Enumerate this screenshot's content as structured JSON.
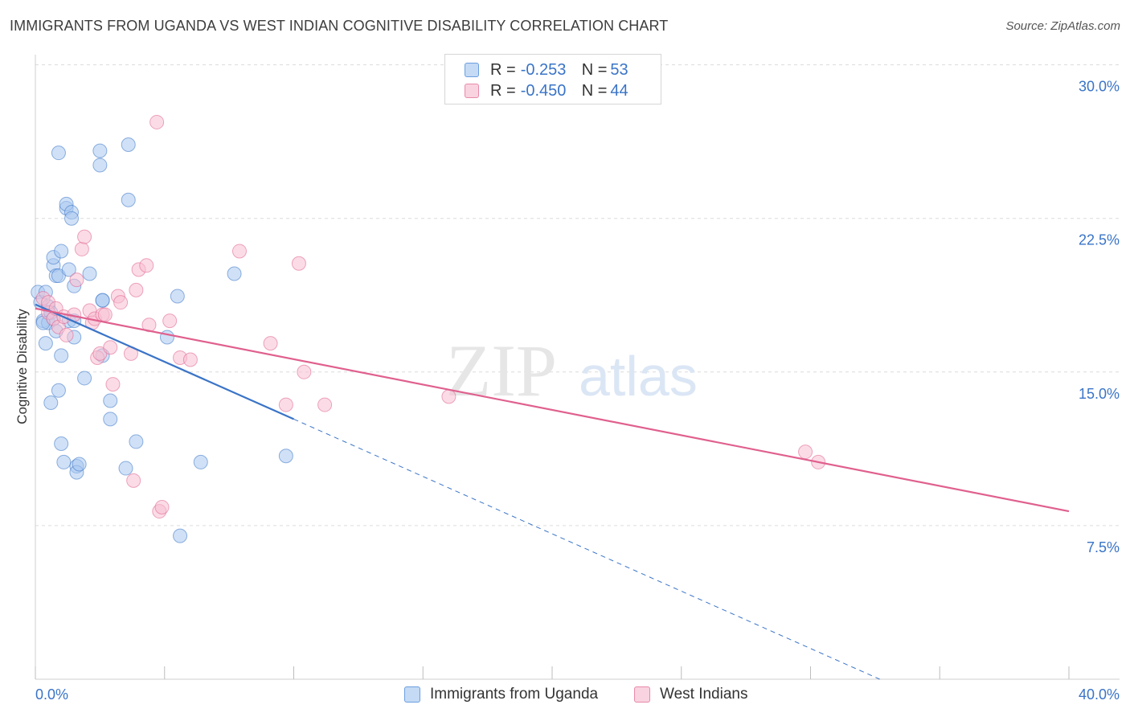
{
  "header": {
    "title": "IMMIGRANTS FROM UGANDA VS WEST INDIAN COGNITIVE DISABILITY CORRELATION CHART",
    "source": "Source: ZipAtlas.com"
  },
  "watermark": {
    "zip": "ZIP",
    "atlas": "atlas"
  },
  "legend": {
    "rows": [
      {
        "r_label": "R =",
        "r_value": "-0.253",
        "n_label": "N =",
        "n_value": "53",
        "color": "#a9c8f0",
        "border": "#6a9fe0"
      },
      {
        "r_label": "R =",
        "r_value": "-0.450",
        "n_label": "N =",
        "n_value": "44",
        "color": "#f7c0d2",
        "border": "#e88aaa"
      }
    ]
  },
  "bottom_legend": {
    "series_1": "Immigrants from Uganda",
    "series_2": "West Indians"
  },
  "chart_data": {
    "type": "scatter",
    "title": "IMMIGRANTS FROM UGANDA VS WEST INDIAN COGNITIVE DISABILITY CORRELATION CHART",
    "xlabel": "",
    "ylabel": "Cognitive Disability",
    "xlim": [
      0,
      40
    ],
    "ylim": [
      0,
      31
    ],
    "x_tick_labels": [
      "0.0%",
      "40.0%"
    ],
    "y_ticks": [
      7.5,
      15.0,
      22.5,
      30.0
    ],
    "y_tick_labels": [
      "7.5%",
      "15.0%",
      "22.5%",
      "30.0%"
    ],
    "colors": {
      "uganda": "#3a74c7",
      "west_indians": "#e0608e",
      "tick_text": "#3a74c7"
    },
    "series": [
      {
        "name": "Immigrants from Uganda",
        "color": "#3a74c7",
        "fill": "#a9c8f0",
        "points": [
          [
            0.1,
            18.9
          ],
          [
            0.2,
            18.4
          ],
          [
            0.3,
            17.5
          ],
          [
            0.4,
            16.4
          ],
          [
            0.4,
            18.9
          ],
          [
            0.5,
            17.4
          ],
          [
            0.5,
            18.2
          ],
          [
            0.6,
            17.9
          ],
          [
            0.6,
            13.5
          ],
          [
            0.7,
            20.2
          ],
          [
            0.7,
            17.6
          ],
          [
            0.7,
            20.6
          ],
          [
            0.8,
            17.0
          ],
          [
            0.8,
            19.7
          ],
          [
            0.9,
            25.7
          ],
          [
            0.9,
            14.1
          ],
          [
            0.9,
            19.7
          ],
          [
            1.0,
            20.9
          ],
          [
            1.0,
            15.8
          ],
          [
            1.0,
            11.5
          ],
          [
            1.1,
            10.6
          ],
          [
            1.2,
            23.0
          ],
          [
            1.2,
            23.2
          ],
          [
            1.3,
            17.5
          ],
          [
            1.3,
            20.0
          ],
          [
            1.4,
            22.8
          ],
          [
            1.4,
            22.5
          ],
          [
            1.5,
            19.2
          ],
          [
            1.5,
            17.5
          ],
          [
            1.5,
            16.7
          ],
          [
            1.6,
            10.4
          ],
          [
            1.6,
            10.1
          ],
          [
            1.7,
            10.5
          ],
          [
            1.9,
            14.7
          ],
          [
            2.1,
            19.8
          ],
          [
            2.5,
            25.8
          ],
          [
            2.5,
            25.1
          ],
          [
            2.6,
            18.5
          ],
          [
            2.6,
            18.5
          ],
          [
            2.6,
            15.8
          ],
          [
            2.9,
            13.6
          ],
          [
            2.9,
            12.7
          ],
          [
            3.5,
            10.3
          ],
          [
            3.6,
            23.4
          ],
          [
            3.6,
            26.1
          ],
          [
            3.9,
            11.6
          ],
          [
            5.1,
            16.7
          ],
          [
            5.5,
            18.7
          ],
          [
            5.6,
            7.0
          ],
          [
            6.4,
            10.6
          ],
          [
            7.7,
            19.8
          ],
          [
            9.7,
            10.9
          ],
          [
            0.3,
            17.4
          ]
        ]
      },
      {
        "name": "West Indians",
        "color": "#e0608e",
        "fill": "#f7c0d2",
        "points": [
          [
            0.3,
            18.6
          ],
          [
            0.5,
            17.9
          ],
          [
            0.5,
            18.4
          ],
          [
            0.7,
            17.6
          ],
          [
            0.8,
            18.1
          ],
          [
            0.9,
            17.2
          ],
          [
            1.1,
            17.7
          ],
          [
            1.2,
            16.8
          ],
          [
            1.5,
            17.8
          ],
          [
            1.6,
            19.5
          ],
          [
            1.8,
            21.0
          ],
          [
            1.9,
            21.6
          ],
          [
            2.1,
            18.0
          ],
          [
            2.2,
            17.4
          ],
          [
            2.3,
            17.6
          ],
          [
            2.4,
            15.7
          ],
          [
            2.5,
            15.9
          ],
          [
            2.6,
            17.8
          ],
          [
            2.7,
            17.8
          ],
          [
            2.9,
            16.2
          ],
          [
            3.0,
            14.4
          ],
          [
            3.2,
            18.7
          ],
          [
            3.3,
            18.4
          ],
          [
            3.7,
            15.9
          ],
          [
            3.8,
            9.7
          ],
          [
            3.9,
            19.0
          ],
          [
            4.0,
            20.0
          ],
          [
            4.3,
            20.2
          ],
          [
            4.4,
            17.3
          ],
          [
            4.7,
            27.2
          ],
          [
            4.8,
            8.2
          ],
          [
            4.9,
            8.4
          ],
          [
            5.2,
            17.5
          ],
          [
            5.6,
            15.7
          ],
          [
            6.0,
            15.6
          ],
          [
            7.9,
            20.9
          ],
          [
            9.1,
            16.4
          ],
          [
            9.7,
            13.4
          ],
          [
            10.2,
            20.3
          ],
          [
            10.4,
            15.0
          ],
          [
            11.2,
            13.4
          ],
          [
            16.0,
            13.8
          ],
          [
            29.8,
            11.1
          ],
          [
            30.3,
            10.6
          ]
        ]
      }
    ],
    "trend_lines": [
      {
        "series": "Immigrants from Uganda",
        "solid": [
          [
            0.0,
            18.3
          ],
          [
            10.0,
            12.7
          ]
        ],
        "dashed": [
          [
            10.0,
            12.7
          ],
          [
            40.0,
            -4.1
          ]
        ]
      },
      {
        "series": "West Indians",
        "solid": [
          [
            0.0,
            18.1
          ],
          [
            40.0,
            8.2
          ]
        ]
      }
    ]
  }
}
